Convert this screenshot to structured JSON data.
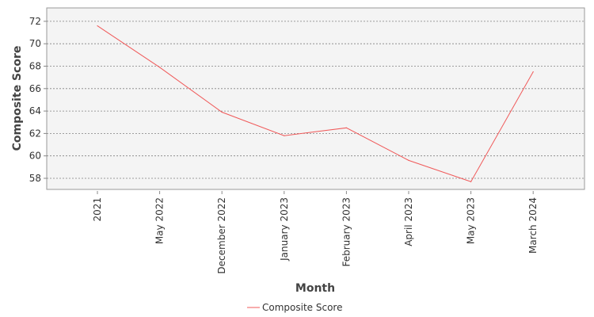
{
  "chart_data": {
    "type": "line",
    "xlabel": "Month",
    "ylabel": "Composite Score",
    "categories": [
      "2021",
      "May 2022",
      "December 2022",
      "January 2023",
      "February 2023",
      "April 2023",
      "May 2023",
      "March 2024"
    ],
    "series": [
      {
        "name": "Composite Score",
        "color": "#f05a5a",
        "values": [
          71.6,
          67.9,
          63.9,
          61.8,
          62.5,
          59.6,
          57.7,
          67.5
        ]
      }
    ],
    "ylim": [
      57,
      73
    ],
    "yticks": [
      58,
      60,
      62,
      64,
      66,
      68,
      70,
      72
    ],
    "grid": true,
    "legend_position": "bottom-center",
    "plot_background": "#f4f4f4"
  }
}
